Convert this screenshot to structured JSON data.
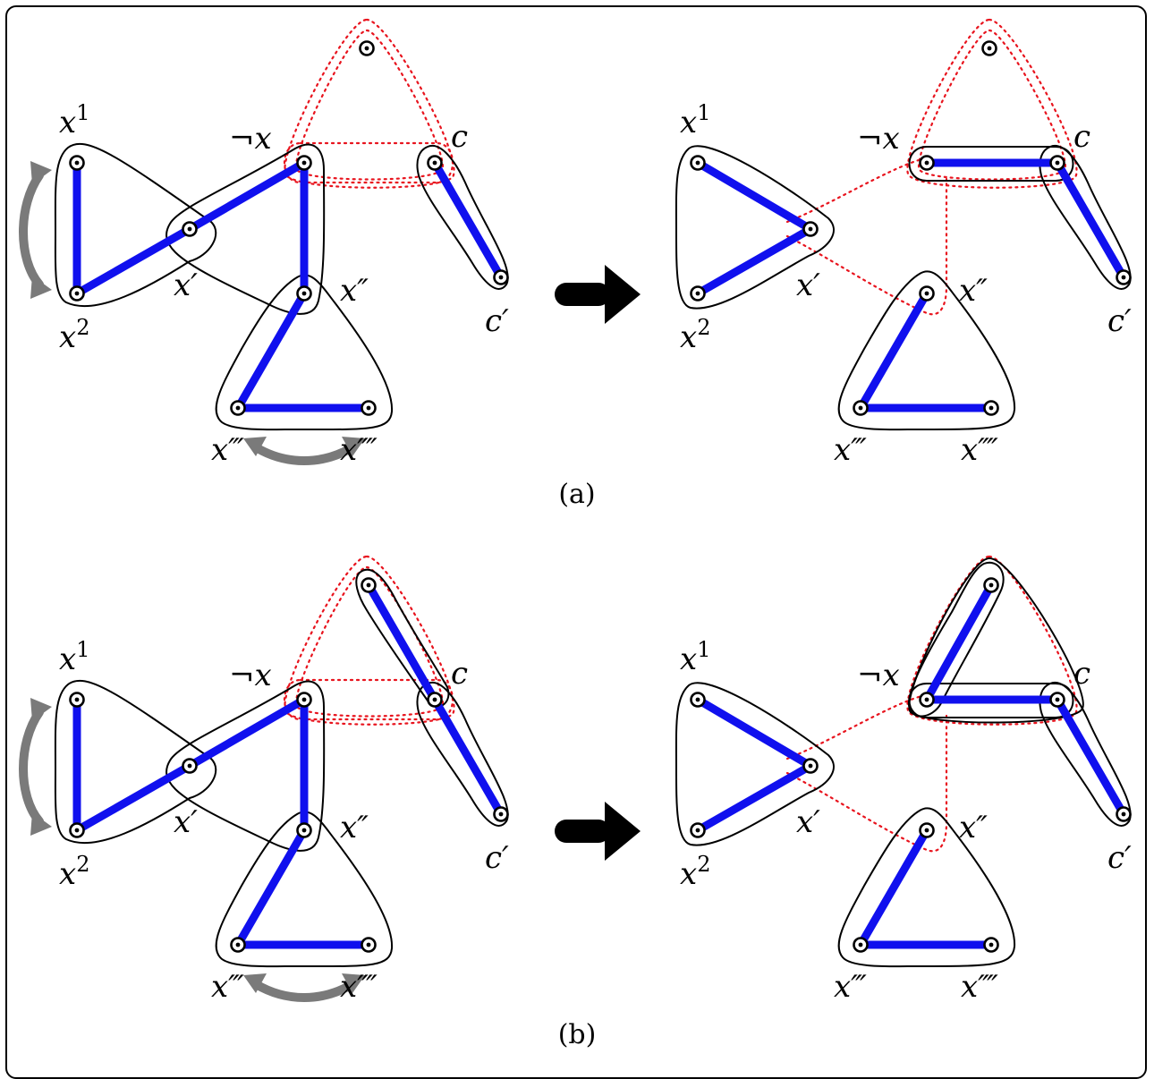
{
  "panels": [
    {
      "id": "a",
      "caption": "(a)",
      "labels": {
        "x1_base": "x",
        "x1_sup": "1",
        "x2_base": "x",
        "x2_sup": "2",
        "xp": "x′",
        "xpp": "x″",
        "xppp": "x‴",
        "xpppp": "x⁗",
        "negx": "¬x",
        "c": "c",
        "cp": "c′"
      }
    },
    {
      "id": "b",
      "caption": "(b)",
      "labels": {
        "x1_base": "x",
        "x1_sup": "1",
        "x2_base": "x",
        "x2_sup": "2",
        "xp": "x′",
        "xpp": "x″",
        "xppp": "x‴",
        "xpppp": "x⁗",
        "negx": "¬x",
        "c": "c",
        "cp": "c′"
      }
    }
  ],
  "colors": {
    "edge": "#1010ee",
    "red_hyperedge": "#e8141e",
    "swap_arrow": "#7a7a7a",
    "transition_arrow": "#000000"
  },
  "icons": {
    "transition": "right-arrow-icon",
    "swap": "curved-double-arrow-icon"
  }
}
